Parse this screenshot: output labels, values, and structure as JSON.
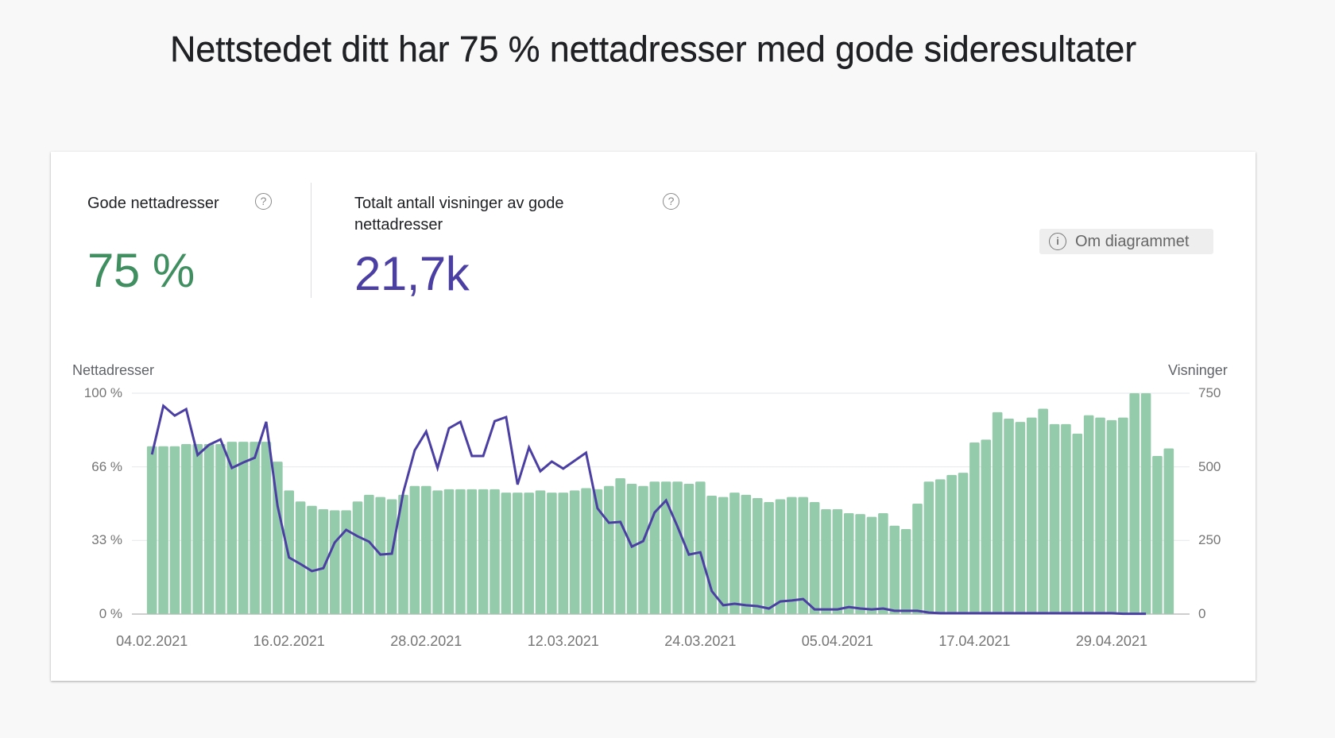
{
  "page": {
    "title": "Nettstedet ditt har 75 % nettadresser med gode sideresultater"
  },
  "metrics": [
    {
      "label": "Gode nettadresser",
      "value": "75 %",
      "color": "#3f8f60",
      "help_icon": "help-circle-icon"
    },
    {
      "label_line1": "Totalt antall visninger av gode",
      "label_line2": "nettadresser",
      "value": "21,7k",
      "color": "#4b3fa4",
      "help_icon": "help-circle-icon"
    }
  ],
  "about_button": {
    "label": "Om diagrammet",
    "icon": "info-icon",
    "info_glyph": "i"
  },
  "help_glyph": "?",
  "colors": {
    "bar": "#93cbab",
    "bar_gap": "#ffffff",
    "line": "#4b3fa4",
    "grid": "#e8eaed",
    "axis": "#bdbdbd"
  },
  "chart_data": {
    "type": "bar+line",
    "title": "",
    "left_axis_title": "Nettadresser",
    "right_axis_title": "Visninger",
    "left_ticks": [
      "0 %",
      "33 %",
      "66 %",
      "100 %"
    ],
    "right_ticks": [
      "0",
      "250",
      "500",
      "750"
    ],
    "ylim_left": [
      0,
      100
    ],
    "ylim_right": [
      0,
      750
    ],
    "x_tick_labels": [
      "04.02.2021",
      "16.02.2021",
      "28.02.2021",
      "12.03.2021",
      "24.03.2021",
      "05.04.2021",
      "17.04.2021",
      "29.04.2021"
    ],
    "x_tick_every": 12,
    "grid": true,
    "legend": "none",
    "series": [
      {
        "name": "Gode nettadresser (%)",
        "type": "bar",
        "axis": "left",
        "values": [
          76,
          76,
          76,
          77,
          77,
          77,
          77,
          78,
          78,
          78,
          78,
          69,
          56,
          51,
          49,
          47.5,
          47,
          47,
          51,
          54,
          53,
          52,
          54,
          58,
          58,
          56,
          56.5,
          56.5,
          56.5,
          56.5,
          56.5,
          55,
          55,
          55,
          56,
          55,
          55,
          56,
          57,
          56.5,
          58,
          61.5,
          59,
          58,
          60,
          60,
          60,
          59,
          60,
          53.6,
          53,
          55,
          54,
          52.5,
          50.7,
          52,
          53,
          53,
          50.7,
          47.5,
          47.5,
          45.7,
          45.3,
          44,
          45.7,
          40,
          38.5,
          50,
          60,
          61,
          63,
          64,
          77.7,
          79,
          91.4,
          88.5,
          87,
          89,
          93,
          86,
          86,
          81.7,
          90,
          89,
          87.8,
          89,
          100,
          100,
          71.6,
          75
        ]
      },
      {
        "name": "Visninger",
        "type": "line",
        "axis": "right",
        "values": [
          542,
          707,
          674,
          696,
          540,
          575,
          593,
          496,
          515,
          531,
          653,
          367,
          192,
          170,
          146,
          156,
          243,
          286,
          264,
          246,
          202,
          205,
          413,
          556,
          620,
          496,
          631,
          653,
          537,
          537,
          655,
          669,
          440,
          566,
          485,
          518,
          494,
          521,
          548,
          359,
          310,
          313,
          229,
          248,
          345,
          386,
          297,
          202,
          210,
          78,
          30,
          35,
          30,
          27,
          19,
          43,
          46,
          51,
          16,
          16,
          16,
          24,
          19,
          16,
          19,
          11,
          11,
          11,
          5,
          3,
          3,
          3,
          3,
          3,
          3,
          3,
          3,
          3,
          3,
          3,
          3,
          3,
          3,
          3,
          3,
          1,
          1,
          1
        ]
      }
    ]
  }
}
